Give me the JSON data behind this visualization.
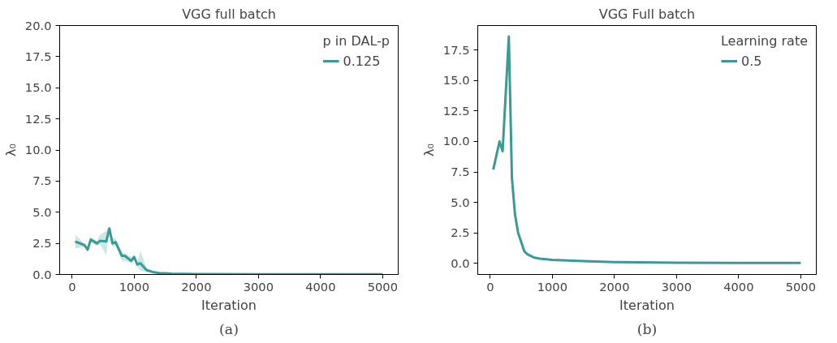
{
  "chart_data": [
    {
      "type": "line",
      "title": "VGG full batch",
      "xlabel": "Iteration",
      "ylabel": "λ₀",
      "legend_title": "p in DAL-p",
      "legend": "top right",
      "grid": false,
      "annotations": [
        "(a)"
      ],
      "xlim": [
        -200,
        5250
      ],
      "xticks": [
        0,
        1000,
        2000,
        3000,
        4000,
        5000
      ],
      "ylim": [
        0,
        20
      ],
      "yticks": [
        {
          "value": 0,
          "label": "0.0"
        },
        {
          "value": 2.5,
          "label": "2.5"
        },
        {
          "value": 5,
          "label": "5.0"
        },
        {
          "value": 7.5,
          "label": "7.5"
        },
        {
          "value": 10,
          "label": "10.0"
        },
        {
          "value": 12.5,
          "label": "12.5"
        },
        {
          "value": 15,
          "label": "15.0"
        },
        {
          "value": 17.5,
          "label": "17.5"
        },
        {
          "value": 20,
          "label": "20.0"
        }
      ],
      "series": [
        {
          "name": "0.125",
          "color": "#3a9b94",
          "x": [
            50,
            200,
            250,
            300,
            400,
            450,
            550,
            600,
            650,
            700,
            800,
            850,
            950,
            1000,
            1050,
            1100,
            1200,
            1300,
            1400,
            1500,
            1600,
            2000,
            3000,
            4000,
            5000
          ],
          "values": [
            2.65,
            2.35,
            2.0,
            2.8,
            2.5,
            2.7,
            2.65,
            3.7,
            2.5,
            2.6,
            1.5,
            1.5,
            1.1,
            1.4,
            0.8,
            0.9,
            0.35,
            0.2,
            0.12,
            0.1,
            0.07,
            0.04,
            0.02,
            0.01,
            0.01
          ],
          "lower": [
            2.1,
            2.2,
            1.9,
            2.6,
            2.3,
            2.4,
            1.6,
            3.5,
            2.2,
            2.3,
            1.1,
            1.1,
            0.9,
            1.1,
            0.6,
            0.3,
            0.2,
            0.1,
            0.08,
            0.06,
            0.04,
            0.02,
            0.0,
            0.0,
            0.0
          ],
          "upper": [
            3.2,
            2.5,
            2.1,
            3.0,
            2.7,
            3.2,
            3.5,
            3.9,
            2.9,
            2.9,
            1.8,
            1.7,
            1.4,
            1.6,
            1.0,
            1.9,
            0.5,
            0.3,
            0.18,
            0.14,
            0.1,
            0.07,
            0.04,
            0.02,
            0.02
          ]
        }
      ]
    },
    {
      "type": "line",
      "title": "VGG Full batch",
      "xlabel": "Iteration",
      "ylabel": "λ₀",
      "legend_title": "Learning rate",
      "legend": "top right",
      "grid": false,
      "annotations": [
        "(b)"
      ],
      "xlim": [
        -200,
        5250
      ],
      "xticks": [
        0,
        1000,
        2000,
        3000,
        4000,
        5000
      ],
      "ylim": [
        -0.9,
        19.5
      ],
      "yticks": [
        {
          "value": 0,
          "label": "0.0"
        },
        {
          "value": 2.5,
          "label": "2.5"
        },
        {
          "value": 5,
          "label": "5.0"
        },
        {
          "value": 7.5,
          "label": "7.5"
        },
        {
          "value": 10,
          "label": "10.0"
        },
        {
          "value": 12.5,
          "label": "12.5"
        },
        {
          "value": 15,
          "label": "15.0"
        },
        {
          "value": 17.5,
          "label": "17.5"
        }
      ],
      "series": [
        {
          "name": "0.5",
          "color": "#3a9b94",
          "x": [
            50,
            150,
            200,
            300,
            350,
            400,
            450,
            550,
            600,
            700,
            800,
            1000,
            1500,
            2000,
            3000,
            4000,
            5000
          ],
          "values": [
            7.7,
            10.0,
            9.2,
            18.6,
            7.0,
            4.0,
            2.5,
            1.0,
            0.75,
            0.5,
            0.4,
            0.3,
            0.2,
            0.12,
            0.07,
            0.05,
            0.05
          ]
        }
      ]
    }
  ]
}
